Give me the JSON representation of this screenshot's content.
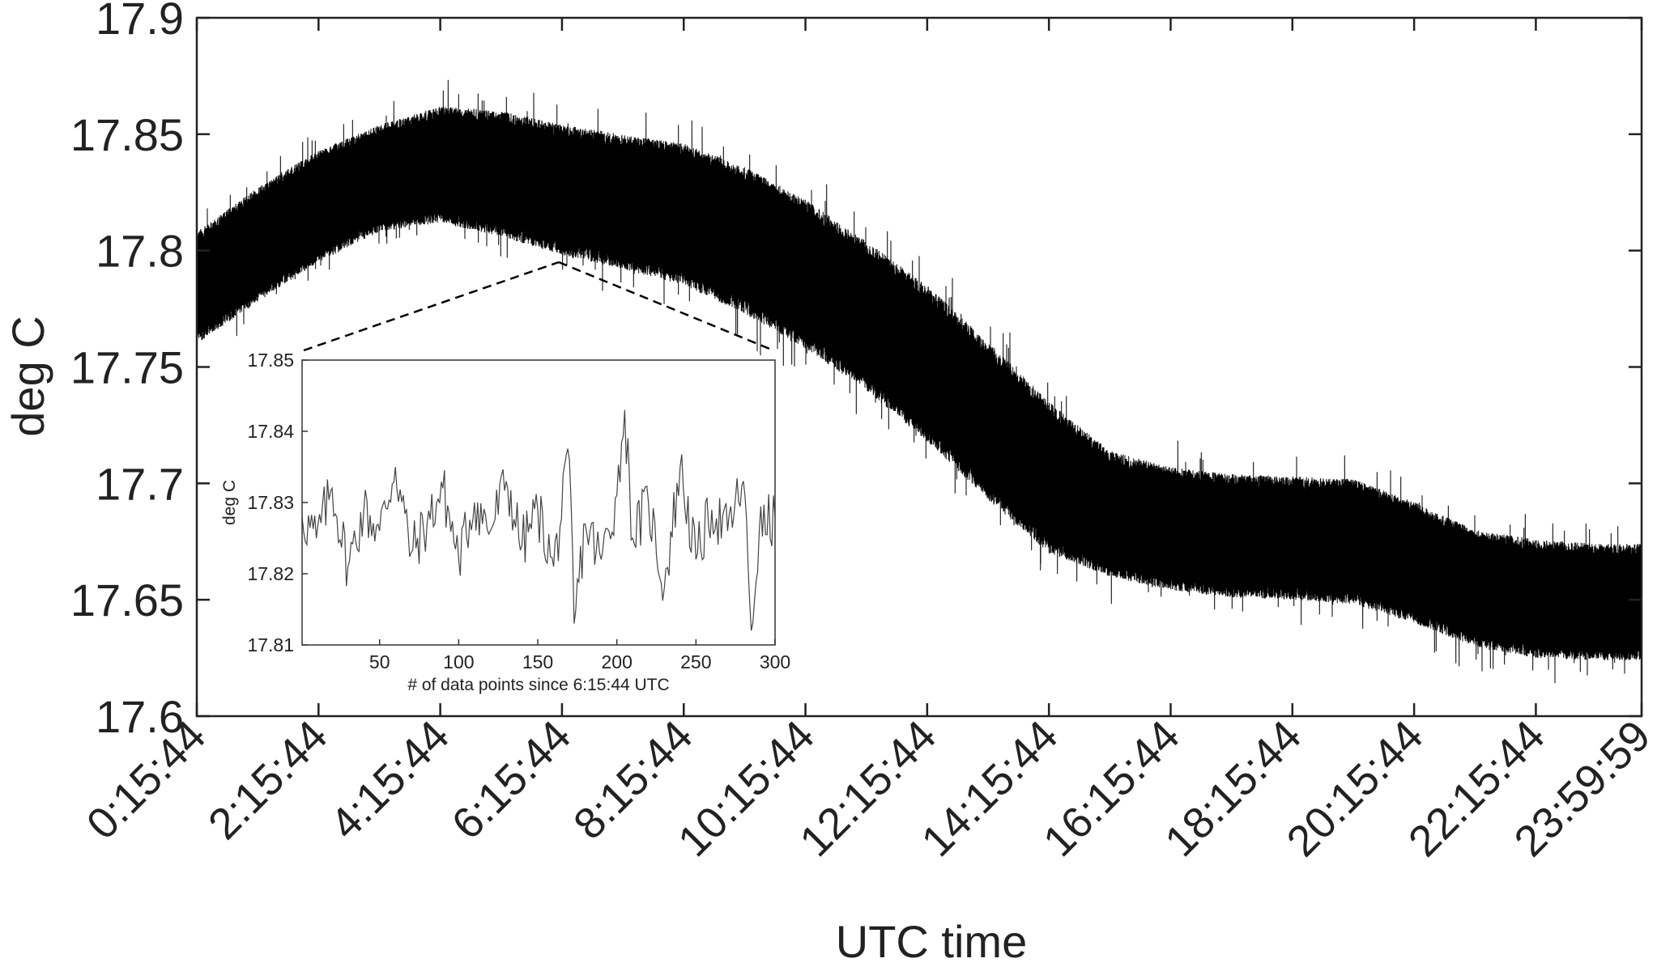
{
  "chart_data": [
    {
      "type": "line",
      "title": "",
      "xlabel": "UTC time",
      "ylabel": "deg C",
      "ylim": [
        17.6,
        17.9
      ],
      "yticks": [
        "17.6",
        "17.65",
        "17.7",
        "17.75",
        "17.8",
        "17.85",
        "17.9"
      ],
      "x_ticks": [
        "0:15:44",
        "2:15:44",
        "4:15:44",
        "6:15:44",
        "8:15:44",
        "10:15:44",
        "12:15:44",
        "14:15:44",
        "16:15:44",
        "18:15:44",
        "20:15:44",
        "22:15:44",
        "23:59:59"
      ],
      "grid": false,
      "series": [
        {
          "color": "#000000",
          "x": [
            "0:15:44",
            "1:15:44",
            "2:15:44",
            "3:15:44",
            "4:15:44",
            "5:15:44",
            "6:15:44",
            "7:15:44",
            "8:15:44",
            "9:15:44",
            "10:15:44",
            "11:15:44",
            "12:15:44",
            "13:15:44",
            "14:15:44",
            "15:15:44",
            "16:15:44",
            "17:15:44",
            "18:15:44",
            "19:15:44",
            "20:15:44",
            "21:15:44",
            "22:15:44",
            "23:15:44",
            "23:59:59"
          ],
          "center": [
            17.785,
            17.803,
            17.818,
            17.829,
            17.836,
            17.835,
            17.83,
            17.826,
            17.82,
            17.808,
            17.793,
            17.775,
            17.755,
            17.73,
            17.703,
            17.688,
            17.68,
            17.677,
            17.676,
            17.674,
            17.666,
            17.656,
            17.651,
            17.65,
            17.65
          ],
          "low": [
            17.76,
            17.778,
            17.795,
            17.808,
            17.812,
            17.806,
            17.798,
            17.792,
            17.785,
            17.773,
            17.758,
            17.74,
            17.718,
            17.693,
            17.67,
            17.66,
            17.654,
            17.651,
            17.65,
            17.648,
            17.64,
            17.63,
            17.625,
            17.624,
            17.624
          ],
          "high": [
            17.808,
            17.827,
            17.843,
            17.854,
            17.862,
            17.86,
            17.854,
            17.85,
            17.846,
            17.836,
            17.822,
            17.804,
            17.785,
            17.761,
            17.735,
            17.714,
            17.707,
            17.704,
            17.703,
            17.702,
            17.692,
            17.68,
            17.676,
            17.674,
            17.674
          ]
        }
      ]
    },
    {
      "type": "line",
      "title": "",
      "xlabel": "# of data points since 6:15:44 UTC",
      "ylabel": "deg C",
      "xlim": [
        1,
        300
      ],
      "ylim": [
        17.81,
        17.85
      ],
      "xticks": [
        "50",
        "100",
        "150",
        "200",
        "250",
        "300"
      ],
      "yticks": [
        "17.81",
        "17.82",
        "17.83",
        "17.84",
        "17.85"
      ],
      "grid": false,
      "series": [
        {
          "color": "#444444",
          "x": [
            1,
            10,
            20,
            30,
            40,
            50,
            60,
            70,
            80,
            90,
            100,
            110,
            120,
            130,
            140,
            150,
            160,
            170,
            173,
            180,
            190,
            200,
            205,
            210,
            220,
            230,
            240,
            250,
            260,
            270,
            280,
            285,
            290,
            300
          ],
          "values": [
            17.828,
            17.825,
            17.832,
            17.821,
            17.829,
            17.826,
            17.835,
            17.823,
            17.827,
            17.832,
            17.822,
            17.83,
            17.826,
            17.833,
            17.824,
            17.829,
            17.821,
            17.836,
            17.813,
            17.827,
            17.822,
            17.831,
            17.843,
            17.825,
            17.83,
            17.818,
            17.835,
            17.822,
            17.829,
            17.826,
            17.833,
            17.812,
            17.826,
            17.828
          ]
        }
      ]
    }
  ]
}
